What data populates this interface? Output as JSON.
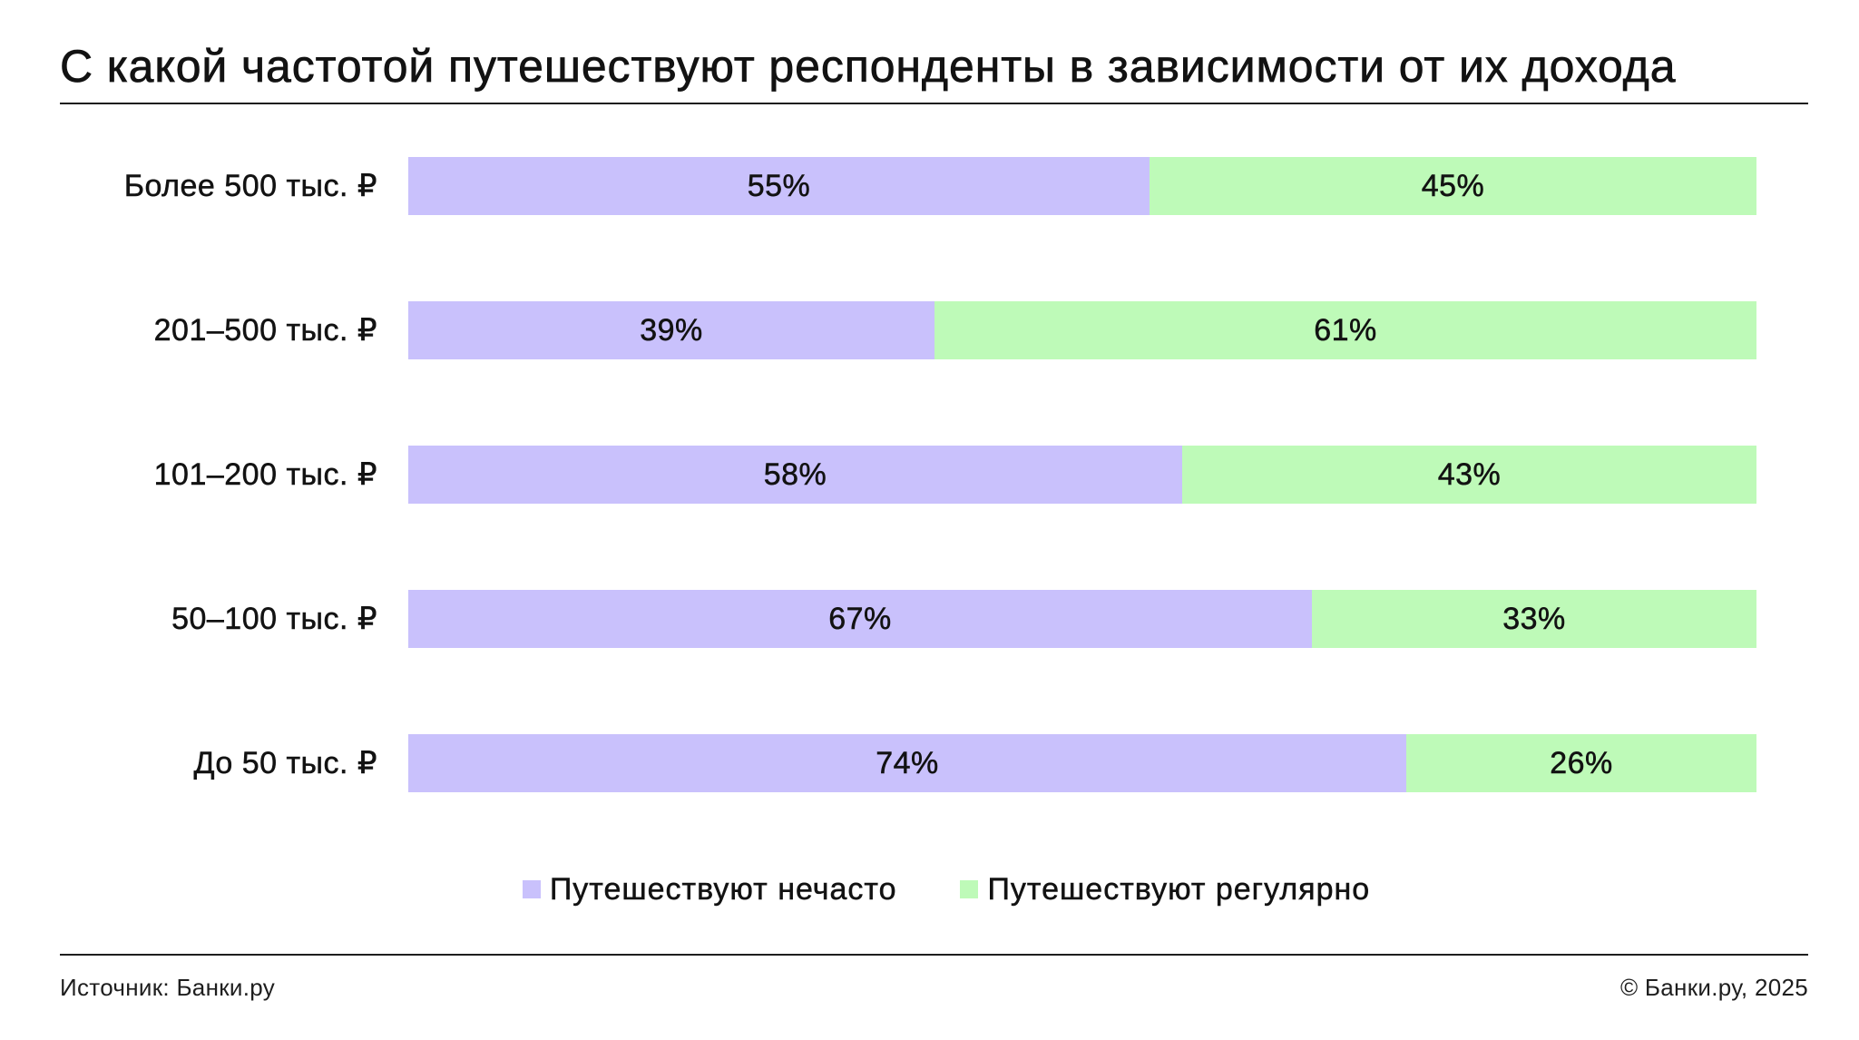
{
  "chart_data": {
    "type": "bar",
    "horizontal": true,
    "stacked": true,
    "normalized": true,
    "title": "С какой частотой путешествуют респонденты в зависимости от их дохода",
    "categories": [
      "Более 500 тыс. ₽",
      "201–500 тыс. ₽",
      "101–200 тыс. ₽",
      "50–100 тыс. ₽",
      "До 50 тыс. ₽"
    ],
    "series": [
      {
        "name": "Путешествуют нечасто",
        "color": "#C9C1FC",
        "values": [
          55,
          39,
          58,
          67,
          74
        ]
      },
      {
        "name": "Путешествуют регулярно",
        "color": "#BEFAB8",
        "values": [
          45,
          61,
          43,
          33,
          26
        ]
      }
    ],
    "unit": "%",
    "data_labels": true,
    "legend": "bottom",
    "grid": false
  },
  "footer": {
    "source": "Источник: Банки.ру",
    "copyright": "© Банки.ру, 2025"
  }
}
